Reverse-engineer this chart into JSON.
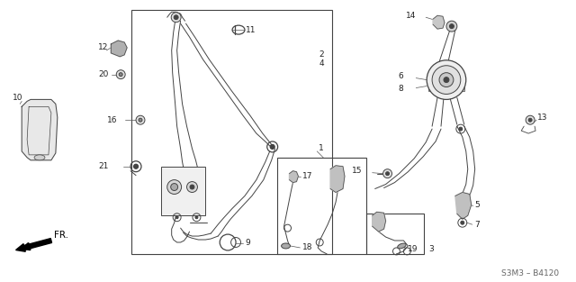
{
  "bg_color": "#ffffff",
  "line_color": "#444444",
  "fig_width": 6.4,
  "fig_height": 3.13,
  "dpi": 100,
  "code": "S3M3 – B4120"
}
